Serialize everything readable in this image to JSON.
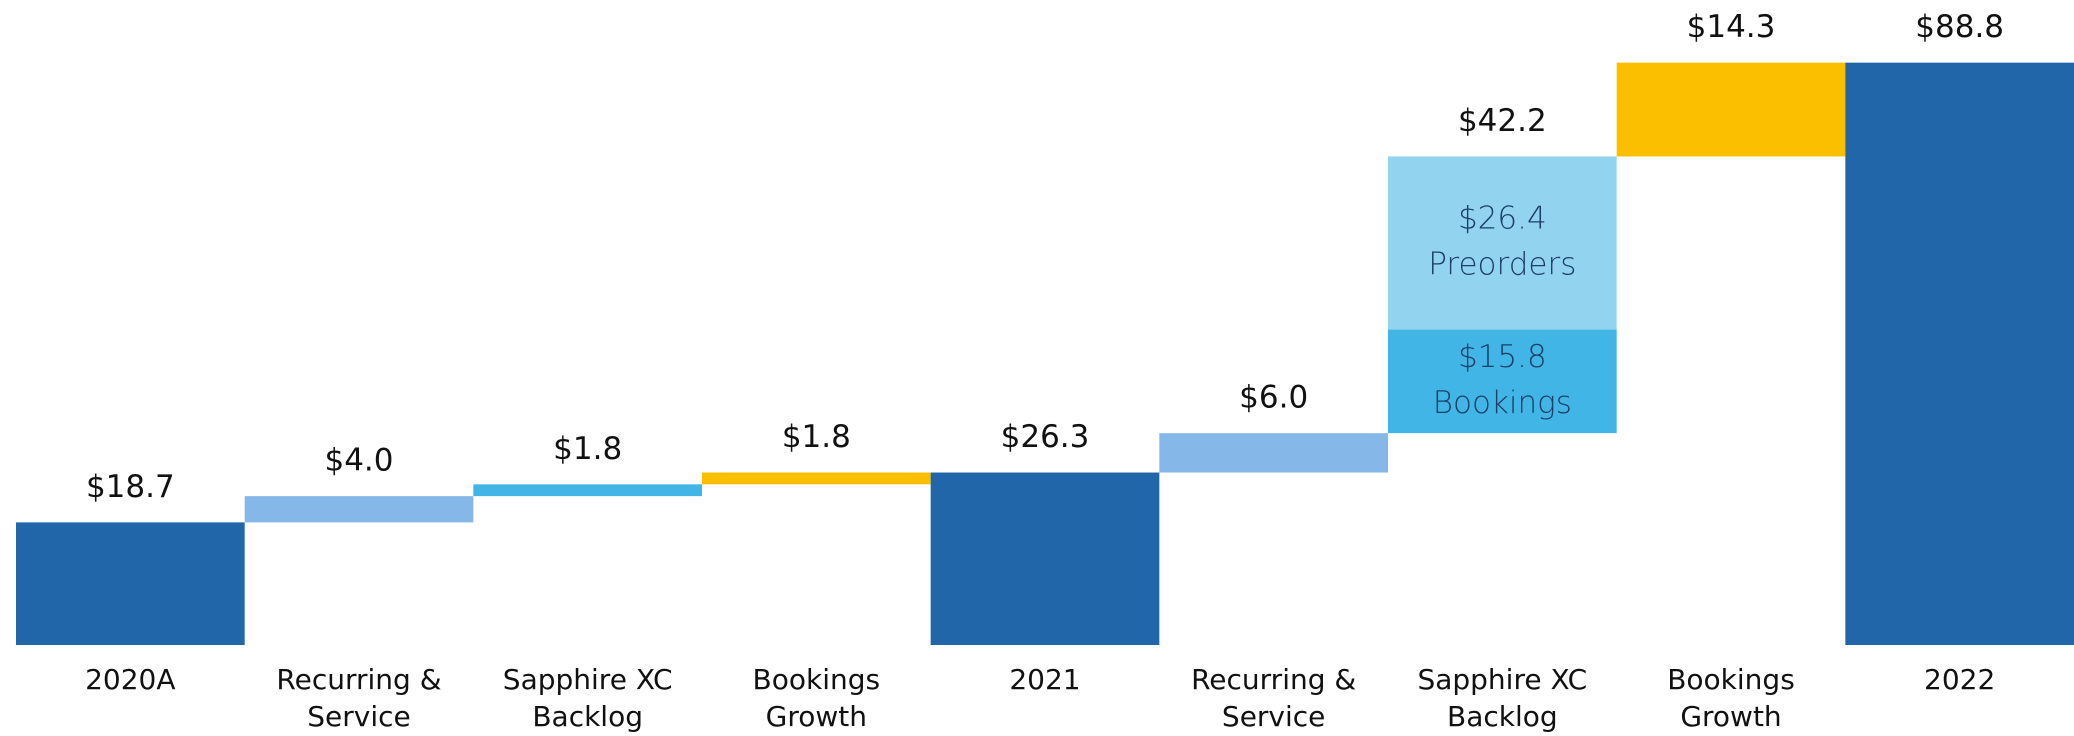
{
  "chart_data": {
    "type": "waterfall",
    "categories": [
      [
        "2020A"
      ],
      [
        "Recurring &",
        "Service"
      ],
      [
        "Sapphire XC",
        "Backlog"
      ],
      [
        "Bookings",
        "Growth"
      ],
      [
        "2021"
      ],
      [
        "Recurring &",
        "Service"
      ],
      [
        "Sapphire XC",
        "Backlog"
      ],
      [
        "Bookings",
        "Growth"
      ],
      [
        "2022"
      ]
    ],
    "values": [
      18.7,
      4.0,
      1.8,
      1.8,
      26.3,
      6.0,
      42.2,
      14.3,
      88.8
    ],
    "value_labels": [
      "$18.7",
      "$4.0",
      "$1.8",
      "$1.8",
      "$26.3",
      "$6.0",
      "$42.2",
      "$14.3",
      "$88.8"
    ],
    "totals": [
      true,
      false,
      false,
      false,
      true,
      false,
      false,
      false,
      true
    ],
    "colors": [
      "#2166a8",
      "#85b8e8",
      "#41b6e6",
      "#fcbf00",
      "#2166a8",
      "#85b8e8",
      "#41b6e6",
      "#fcbf00",
      "#2166a8"
    ],
    "breakdown": {
      "category_index": 6,
      "segments": [
        {
          "name": "Bookings",
          "value": 15.8,
          "value_label": "$15.8",
          "color": "#41b6e6"
        },
        {
          "name": "Preorders",
          "value": 26.4,
          "value_label": "$26.4",
          "color": "#92d3f0"
        }
      ]
    },
    "ylim": [
      0,
      95
    ]
  }
}
